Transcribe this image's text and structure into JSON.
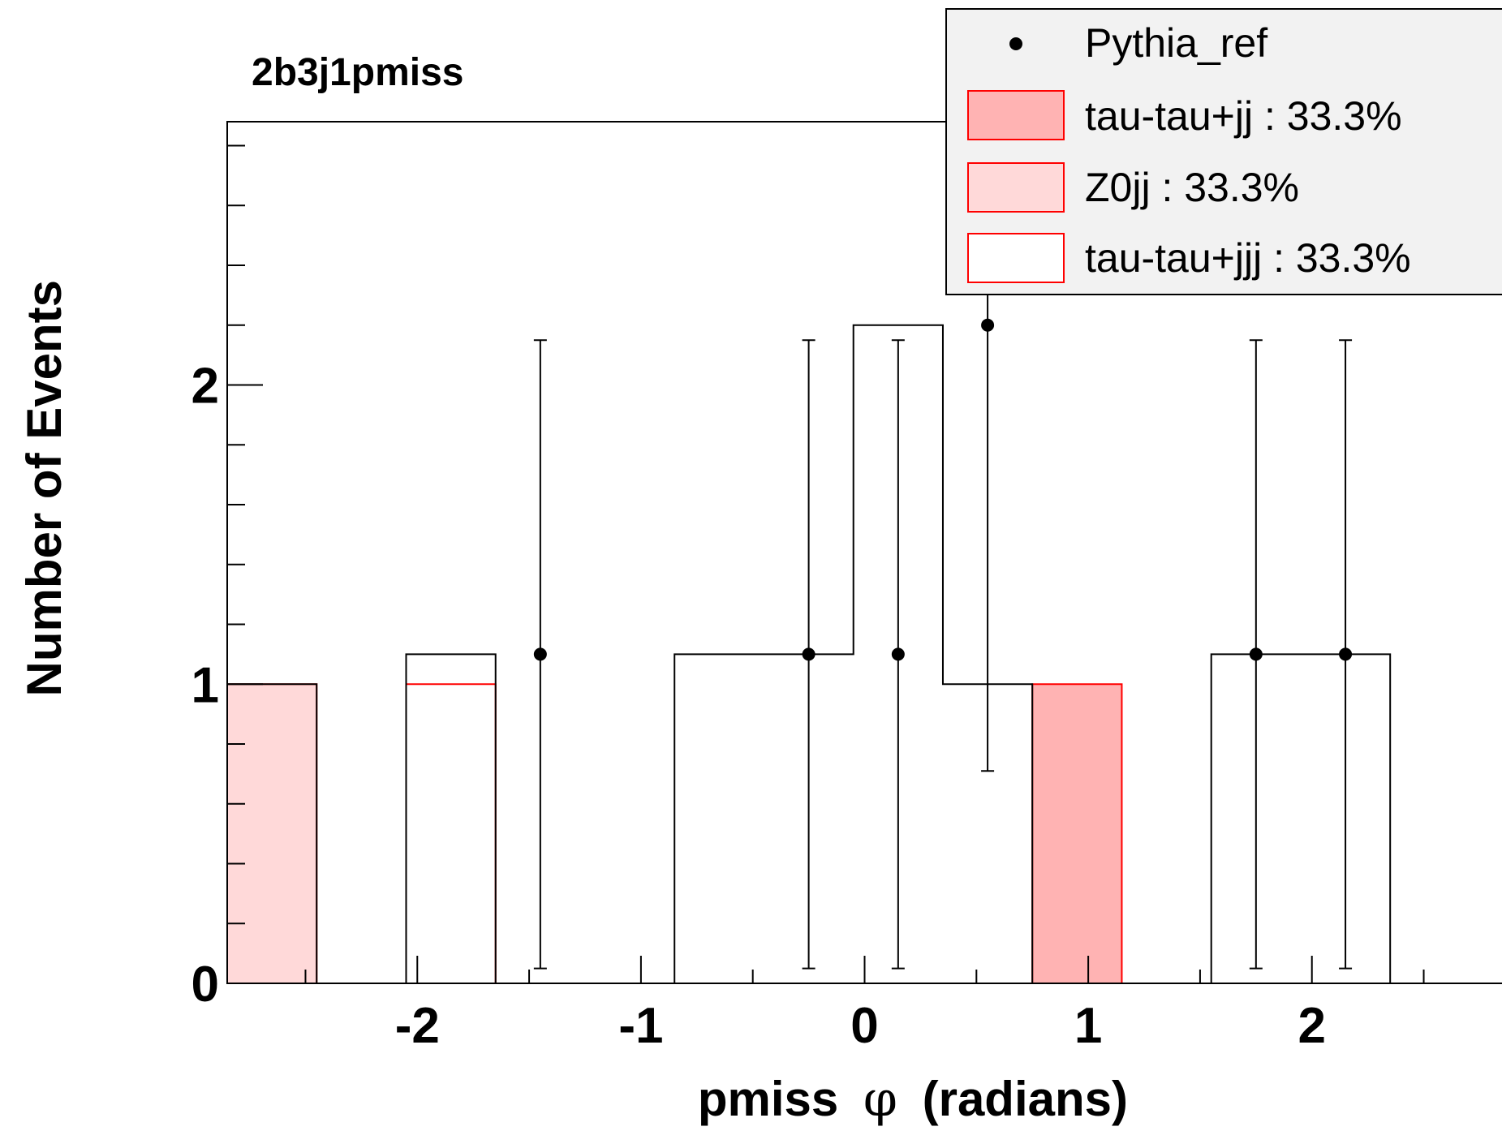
{
  "chart_data": {
    "type": "bar",
    "title": "2b3j1pmiss",
    "xlabel_pre": "pmiss",
    "xlabel_phi": "φ",
    "xlabel_post": "(radians)",
    "ylabel": "Number of Events",
    "xlim": [
      -2.85,
      2.85
    ],
    "ylim": [
      0,
      2.88
    ],
    "xticks": [
      -2,
      -1,
      0,
      1,
      2
    ],
    "xtick_labels": [
      "-2",
      "-1",
      "0",
      "1",
      "2"
    ],
    "yticks": [
      0,
      1,
      2
    ],
    "ytick_labels": [
      "0",
      "1",
      "2"
    ],
    "bin_edges": [
      -2.85,
      -2.45,
      -2.05,
      -1.65,
      -1.25,
      -0.85,
      -0.45,
      -0.05,
      0.35,
      0.75,
      1.15,
      1.55,
      1.95,
      2.35,
      2.75
    ],
    "series": [
      {
        "name": "tau-tau+jj",
        "label": "tau-tau+jj : 33.3%",
        "style": "filled",
        "color": "#ffb3b3",
        "edge": "#ff0000",
        "values": [
          0,
          0,
          0,
          0,
          0,
          0,
          0,
          0,
          0,
          1,
          0,
          0,
          0,
          0
        ]
      },
      {
        "name": "Z0jj",
        "label": "Z0jj : 33.3%",
        "style": "filled",
        "color": "#ffd9d9",
        "edge": "#ff0000",
        "values": [
          1,
          0,
          0,
          0,
          0,
          0,
          0,
          0,
          0,
          0,
          0,
          0,
          0,
          0
        ]
      },
      {
        "name": "tau-tau+jjj",
        "label": "tau-tau+jjj : 33.3%",
        "style": "outline",
        "color": "#ffffff",
        "edge": "#ff0000",
        "values": [
          0,
          0,
          1,
          0,
          0,
          0,
          0,
          0,
          0,
          0,
          0,
          0,
          0,
          0
        ]
      }
    ],
    "mc_total": [
      1,
      0,
      1.1,
      0,
      0,
      1.1,
      1.1,
      2.2,
      1,
      0,
      0,
      1.1,
      1.1,
      0
    ],
    "reference": {
      "name": "Pythia_ref",
      "label": "Pythia_ref",
      "points": [
        {
          "x": -1.45,
          "y": 1.1,
          "lo": 0.05,
          "hi": 2.15
        },
        {
          "x": -0.25,
          "y": 1.1,
          "lo": 0.05,
          "hi": 2.15
        },
        {
          "x": 0.15,
          "y": 1.1,
          "lo": 0.05,
          "hi": 2.15
        },
        {
          "x": 0.55,
          "y": 2.2,
          "lo": 0.71,
          "hi": 3.5
        },
        {
          "x": 1.75,
          "y": 1.1,
          "lo": 0.05,
          "hi": 2.15
        },
        {
          "x": 2.15,
          "y": 1.1,
          "lo": 0.05,
          "hi": 2.15
        }
      ]
    },
    "legend_position": "top-right",
    "legend_background": "#f2f2f2"
  }
}
